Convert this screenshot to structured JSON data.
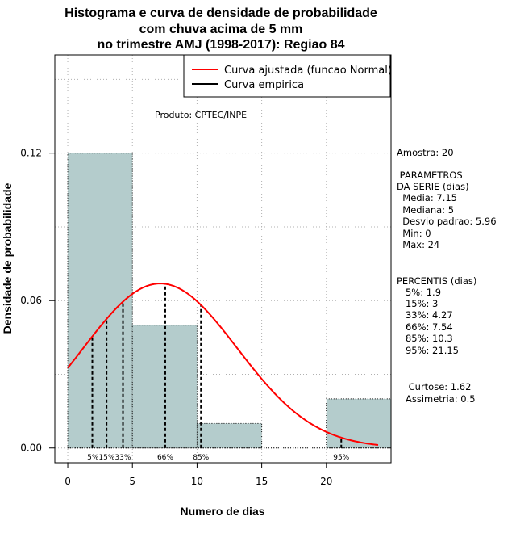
{
  "chart_data": {
    "type": "bar",
    "title_lines": [
      "Histograma e curva de densidade de probabilidade",
      "com chuva acima de 5 mm",
      "no trimestre AMJ (1998-2017): Regiao 84"
    ],
    "xlabel": "Numero de dias",
    "ylabel": "Densidade de probabilidade",
    "xlim": [
      -1,
      25
    ],
    "ylim": [
      -0.006,
      0.16
    ],
    "x_ticks": [
      0,
      5,
      10,
      15,
      20
    ],
    "y_ticks": [
      0.0,
      0.06,
      0.12
    ],
    "y_tick_labels": [
      "0.00",
      "0.06",
      "0.12"
    ],
    "bins": [
      {
        "from": 0,
        "to": 5,
        "density": 0.12
      },
      {
        "from": 5,
        "to": 10,
        "density": 0.05
      },
      {
        "from": 10,
        "to": 15,
        "density": 0.01
      },
      {
        "from": 15,
        "to": 20,
        "density": 0.0
      },
      {
        "from": 20,
        "to": 25,
        "density": 0.02
      }
    ],
    "normal_curve": {
      "mean": 7.15,
      "sd": 5.96,
      "x_start": 0,
      "x_end": 24
    },
    "percentile_markers": [
      {
        "label": "5%",
        "x": 1.9
      },
      {
        "label": "15%",
        "x": 3
      },
      {
        "label": "33%",
        "x": 4.27
      },
      {
        "label": "66%",
        "x": 7.54
      },
      {
        "label": "85%",
        "x": 10.3
      },
      {
        "label": "95%",
        "x": 21.15
      }
    ],
    "percentile_label_text": "5%15%33%",
    "legend": [
      {
        "name": "Curva ajustada (funcao Normal)",
        "color": "#ff0000"
      },
      {
        "name": "Curva empirica",
        "color": "#000000"
      }
    ],
    "grid": true,
    "bar_fill": "#b4cccc",
    "product_note": "Produto: CPTEC/INPE"
  },
  "side_panel": {
    "amostra": "Amostra: 20",
    "params_title_1": " PARAMETROS",
    "params_title_2": "DA SERIE (dias)",
    "media": "  Media: 7.15",
    "mediana": "  Mediana: 5",
    "desvio": "  Desvio padrao: 5.96",
    "min": "  Min: 0",
    "max": "  Max: 24",
    "percentis_title": "PERCENTIS (dias)",
    "p5": "   5%: 1.9",
    "p15": "   15%: 3",
    "p33": "   33%: 4.27",
    "p66": "   66%: 7.54",
    "p85": "   85%: 10.3",
    "p95": "   95%: 21.15",
    "curtose": "    Curtose: 1.62",
    "assimetria": "   Assimetria: 0.5"
  }
}
